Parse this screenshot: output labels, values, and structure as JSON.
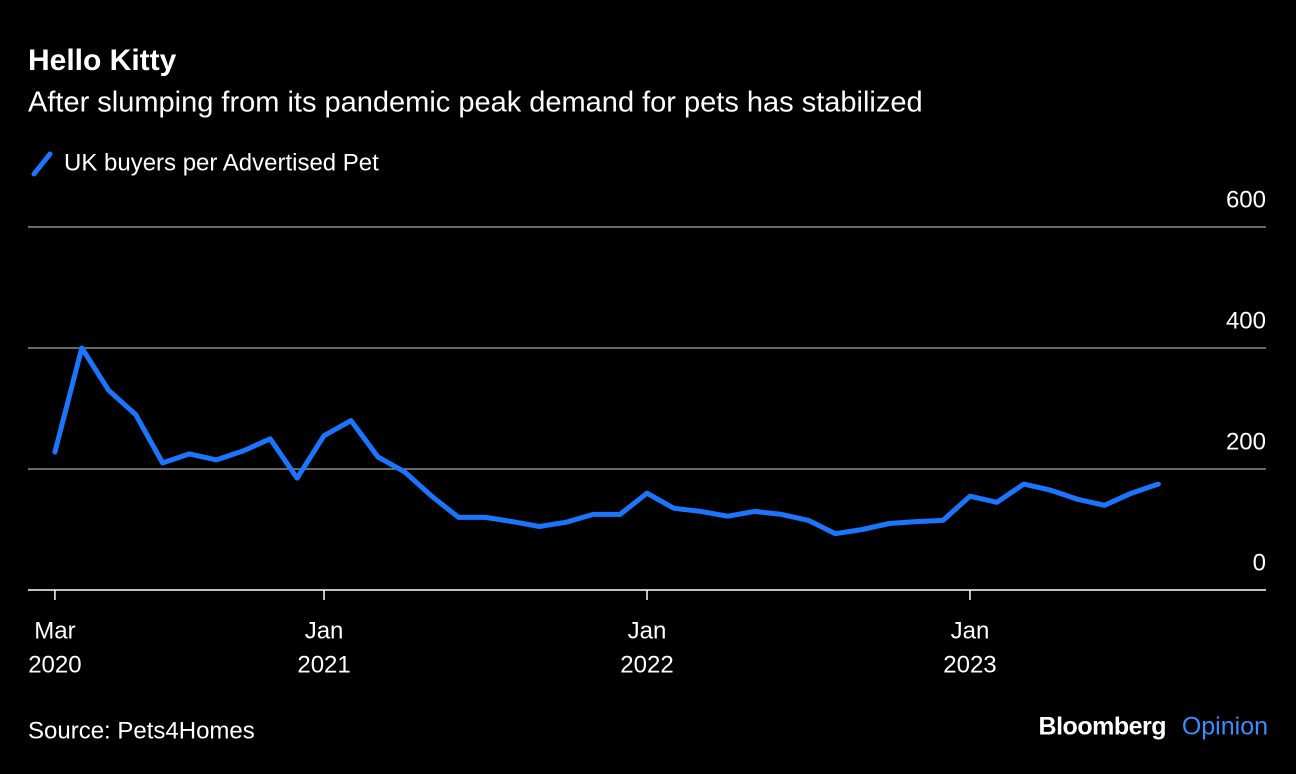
{
  "chart_data": {
    "type": "line",
    "title": "Hello Kitty",
    "subtitle": "After slumping from its pandemic peak demand for pets has stabilized",
    "source": "Source: Pets4Homes",
    "brand": [
      "Bloomberg",
      "Opinion"
    ],
    "x": [
      "2020-03",
      "2020-04",
      "2020-05",
      "2020-06",
      "2020-07",
      "2020-08",
      "2020-09",
      "2020-10",
      "2020-11",
      "2020-12",
      "2021-01",
      "2021-02",
      "2021-03",
      "2021-04",
      "2021-05",
      "2021-06",
      "2021-07",
      "2021-08",
      "2021-09",
      "2021-10",
      "2021-11",
      "2021-12",
      "2022-01",
      "2022-02",
      "2022-03",
      "2022-04",
      "2022-05",
      "2022-06",
      "2022-07",
      "2022-08",
      "2022-09",
      "2022-10",
      "2022-11",
      "2022-12",
      "2023-01",
      "2023-02",
      "2023-03",
      "2023-04",
      "2023-05",
      "2023-06",
      "2023-07",
      "2023-08"
    ],
    "series": [
      {
        "name": "UK buyers per Advertised Pet",
        "color": "#1a75ff",
        "values": [
          228,
          400,
          330,
          290,
          210,
          225,
          215,
          230,
          250,
          185,
          255,
          280,
          220,
          195,
          155,
          120,
          120,
          113,
          105,
          112,
          125,
          125,
          160,
          135,
          130,
          122,
          130,
          125,
          115,
          93,
          100,
          110,
          113,
          115,
          155,
          145,
          175,
          165,
          150,
          140,
          160,
          175
        ]
      }
    ],
    "xlim": [
      "2020-02",
      "2023-12"
    ],
    "xticks": [
      {
        "value": "2020-03",
        "label": [
          "Mar",
          "2020"
        ]
      },
      {
        "value": "2021-01",
        "label": [
          "Jan",
          "2021"
        ]
      },
      {
        "value": "2022-01",
        "label": [
          "Jan",
          "2022"
        ]
      },
      {
        "value": "2023-01",
        "label": [
          "Jan",
          "2023"
        ]
      }
    ],
    "ylim": [
      0,
      600
    ],
    "yticks": [
      0,
      200,
      400,
      600
    ],
    "grid": true
  }
}
